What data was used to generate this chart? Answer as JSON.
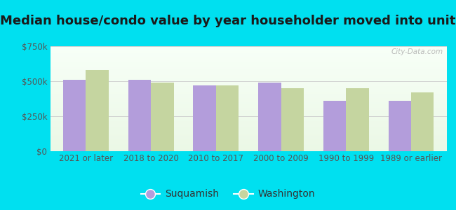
{
  "title": "Median house/condo value by year householder moved into unit",
  "categories": [
    "2021 or later",
    "2018 to 2020",
    "2010 to 2017",
    "2000 to 2009",
    "1990 to 1999",
    "1989 or earlier"
  ],
  "suquamish_values": [
    510000,
    510000,
    470000,
    490000,
    360000,
    360000
  ],
  "washington_values": [
    580000,
    490000,
    470000,
    450000,
    450000,
    420000
  ],
  "suquamish_color": "#b39ddb",
  "washington_color": "#c5d5a0",
  "background_color": "#00e0f0",
  "title_fontsize": 13,
  "tick_fontsize": 8.5,
  "legend_fontsize": 10,
  "ylim": [
    0,
    750000
  ],
  "yticks": [
    0,
    250000,
    500000,
    750000
  ],
  "ytick_labels": [
    "$0",
    "$250k",
    "$500k",
    "$750k"
  ],
  "bar_width": 0.35,
  "watermark": "City-Data.com",
  "grid_color": "#cccccc",
  "tick_color": "#555555"
}
